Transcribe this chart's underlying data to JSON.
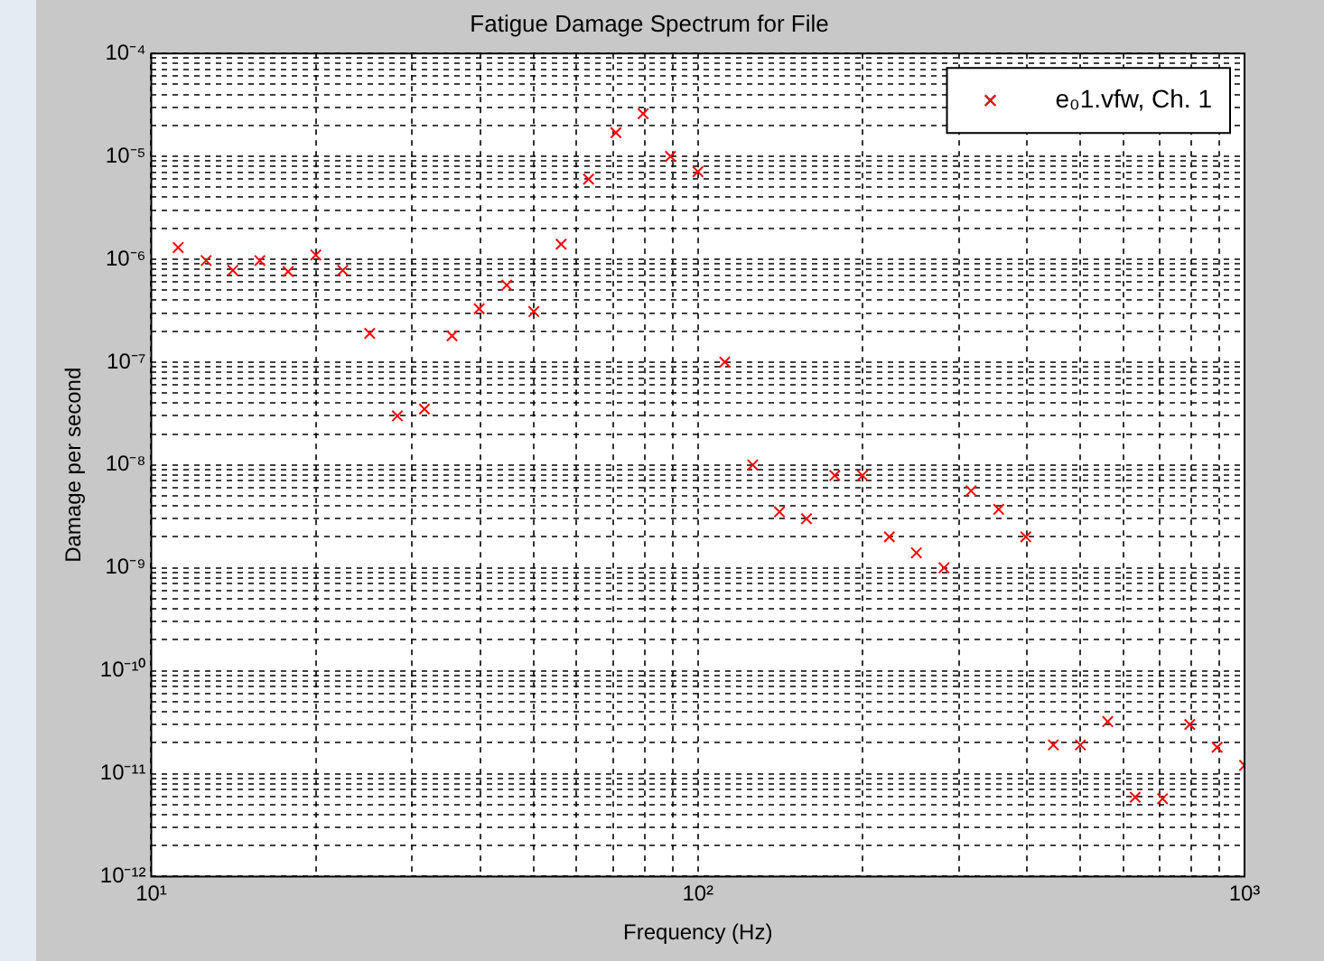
{
  "chart_data": {
    "type": "scatter",
    "title": "Fatigue Damage Spectrum for File",
    "xlabel": "Frequency (Hz)",
    "ylabel": "Damage per second",
    "x": [
      11.2,
      12.6,
      14.1,
      15.8,
      17.8,
      20,
      22.4,
      25.1,
      28.2,
      31.6,
      35.5,
      39.8,
      44.7,
      50.1,
      56.2,
      63.1,
      70.8,
      79.4,
      89.1,
      100,
      112,
      126,
      141,
      158,
      178,
      200,
      224,
      251,
      282,
      316,
      355,
      398,
      447,
      501,
      562,
      631,
      708,
      794,
      891,
      1000
    ],
    "series": [
      {
        "name": "e₀1.vfw, Ch. 1",
        "color": "#ff0000",
        "values": [
          1.3e-06,
          9.7e-07,
          7.8e-07,
          9.7e-07,
          7.6e-07,
          1.1e-06,
          7.8e-07,
          1.9e-07,
          3e-08,
          3.5e-08,
          1.8e-07,
          3.3e-07,
          5.6e-07,
          3.1e-07,
          1.4e-06,
          6e-06,
          1.7e-05,
          2.6e-05,
          1e-05,
          7.1e-06,
          1e-07,
          1e-08,
          3.5e-09,
          3e-09,
          7.9e-09,
          7.9e-09,
          2e-09,
          1.4e-09,
          1e-09,
          5.6e-09,
          3.7e-09,
          2e-09,
          1.9e-11,
          1.9e-11,
          3.2e-11,
          5.9e-12,
          5.7e-12,
          3e-11,
          1.8e-11,
          1.2e-11
        ]
      }
    ],
    "log": "xy",
    "xlim": [
      10,
      1000
    ],
    "ylim": [
      1e-12,
      0.0001
    ],
    "xticks": [
      {
        "value": 10,
        "label": "10¹"
      },
      {
        "value": 100,
        "label": "10²"
      },
      {
        "value": 1000,
        "label": "10³"
      }
    ],
    "yticks": [
      {
        "value": 1e-12,
        "label": "10⁻¹²"
      },
      {
        "value": 1e-11,
        "label": "10⁻¹¹"
      },
      {
        "value": 1e-10,
        "label": "10⁻¹⁰"
      },
      {
        "value": 1e-09,
        "label": "10⁻⁹"
      },
      {
        "value": 1e-08,
        "label": "10⁻⁸"
      },
      {
        "value": 1e-07,
        "label": "10⁻⁷"
      },
      {
        "value": 1e-06,
        "label": "10⁻⁶"
      },
      {
        "value": 1e-05,
        "label": "10⁻⁵"
      },
      {
        "value": 0.0001,
        "label": "10⁻⁴"
      }
    ],
    "grid": true,
    "legend": "top right",
    "marker": "cross"
  }
}
